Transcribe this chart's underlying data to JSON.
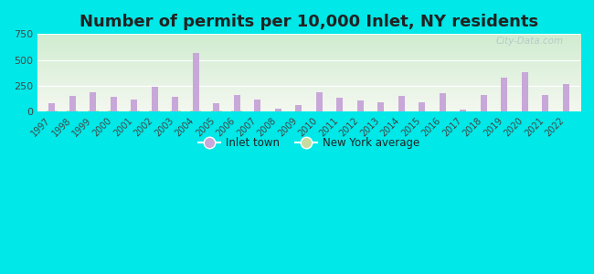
{
  "title": "Number of permits per 10,000 Inlet, NY residents",
  "years": [
    1997,
    1998,
    1999,
    2000,
    2001,
    2002,
    2003,
    2004,
    2005,
    2006,
    2007,
    2008,
    2009,
    2010,
    2011,
    2012,
    2013,
    2014,
    2015,
    2016,
    2017,
    2018,
    2019,
    2020,
    2021,
    2022
  ],
  "inlet_values": [
    80,
    150,
    185,
    145,
    120,
    240,
    145,
    570,
    80,
    165,
    115,
    25,
    65,
    185,
    135,
    110,
    95,
    155,
    90,
    180,
    20,
    160,
    330,
    385,
    160,
    265
  ],
  "ny_values": [
    8,
    10,
    8,
    8,
    8,
    10,
    8,
    8,
    8,
    8,
    5,
    5,
    5,
    5,
    5,
    5,
    5,
    5,
    5,
    5,
    5,
    5,
    5,
    5,
    5,
    5
  ],
  "inlet_color": "#c8a8d8",
  "ny_color": "#c8dca0",
  "bg_color_outer": "#00e8e8",
  "ylim": [
    0,
    750
  ],
  "yticks": [
    0,
    250,
    500,
    750
  ],
  "title_fontsize": 13,
  "watermark": "City-Data.com",
  "grad_top": "#d4edda",
  "grad_bottom": "#f0f5e8"
}
